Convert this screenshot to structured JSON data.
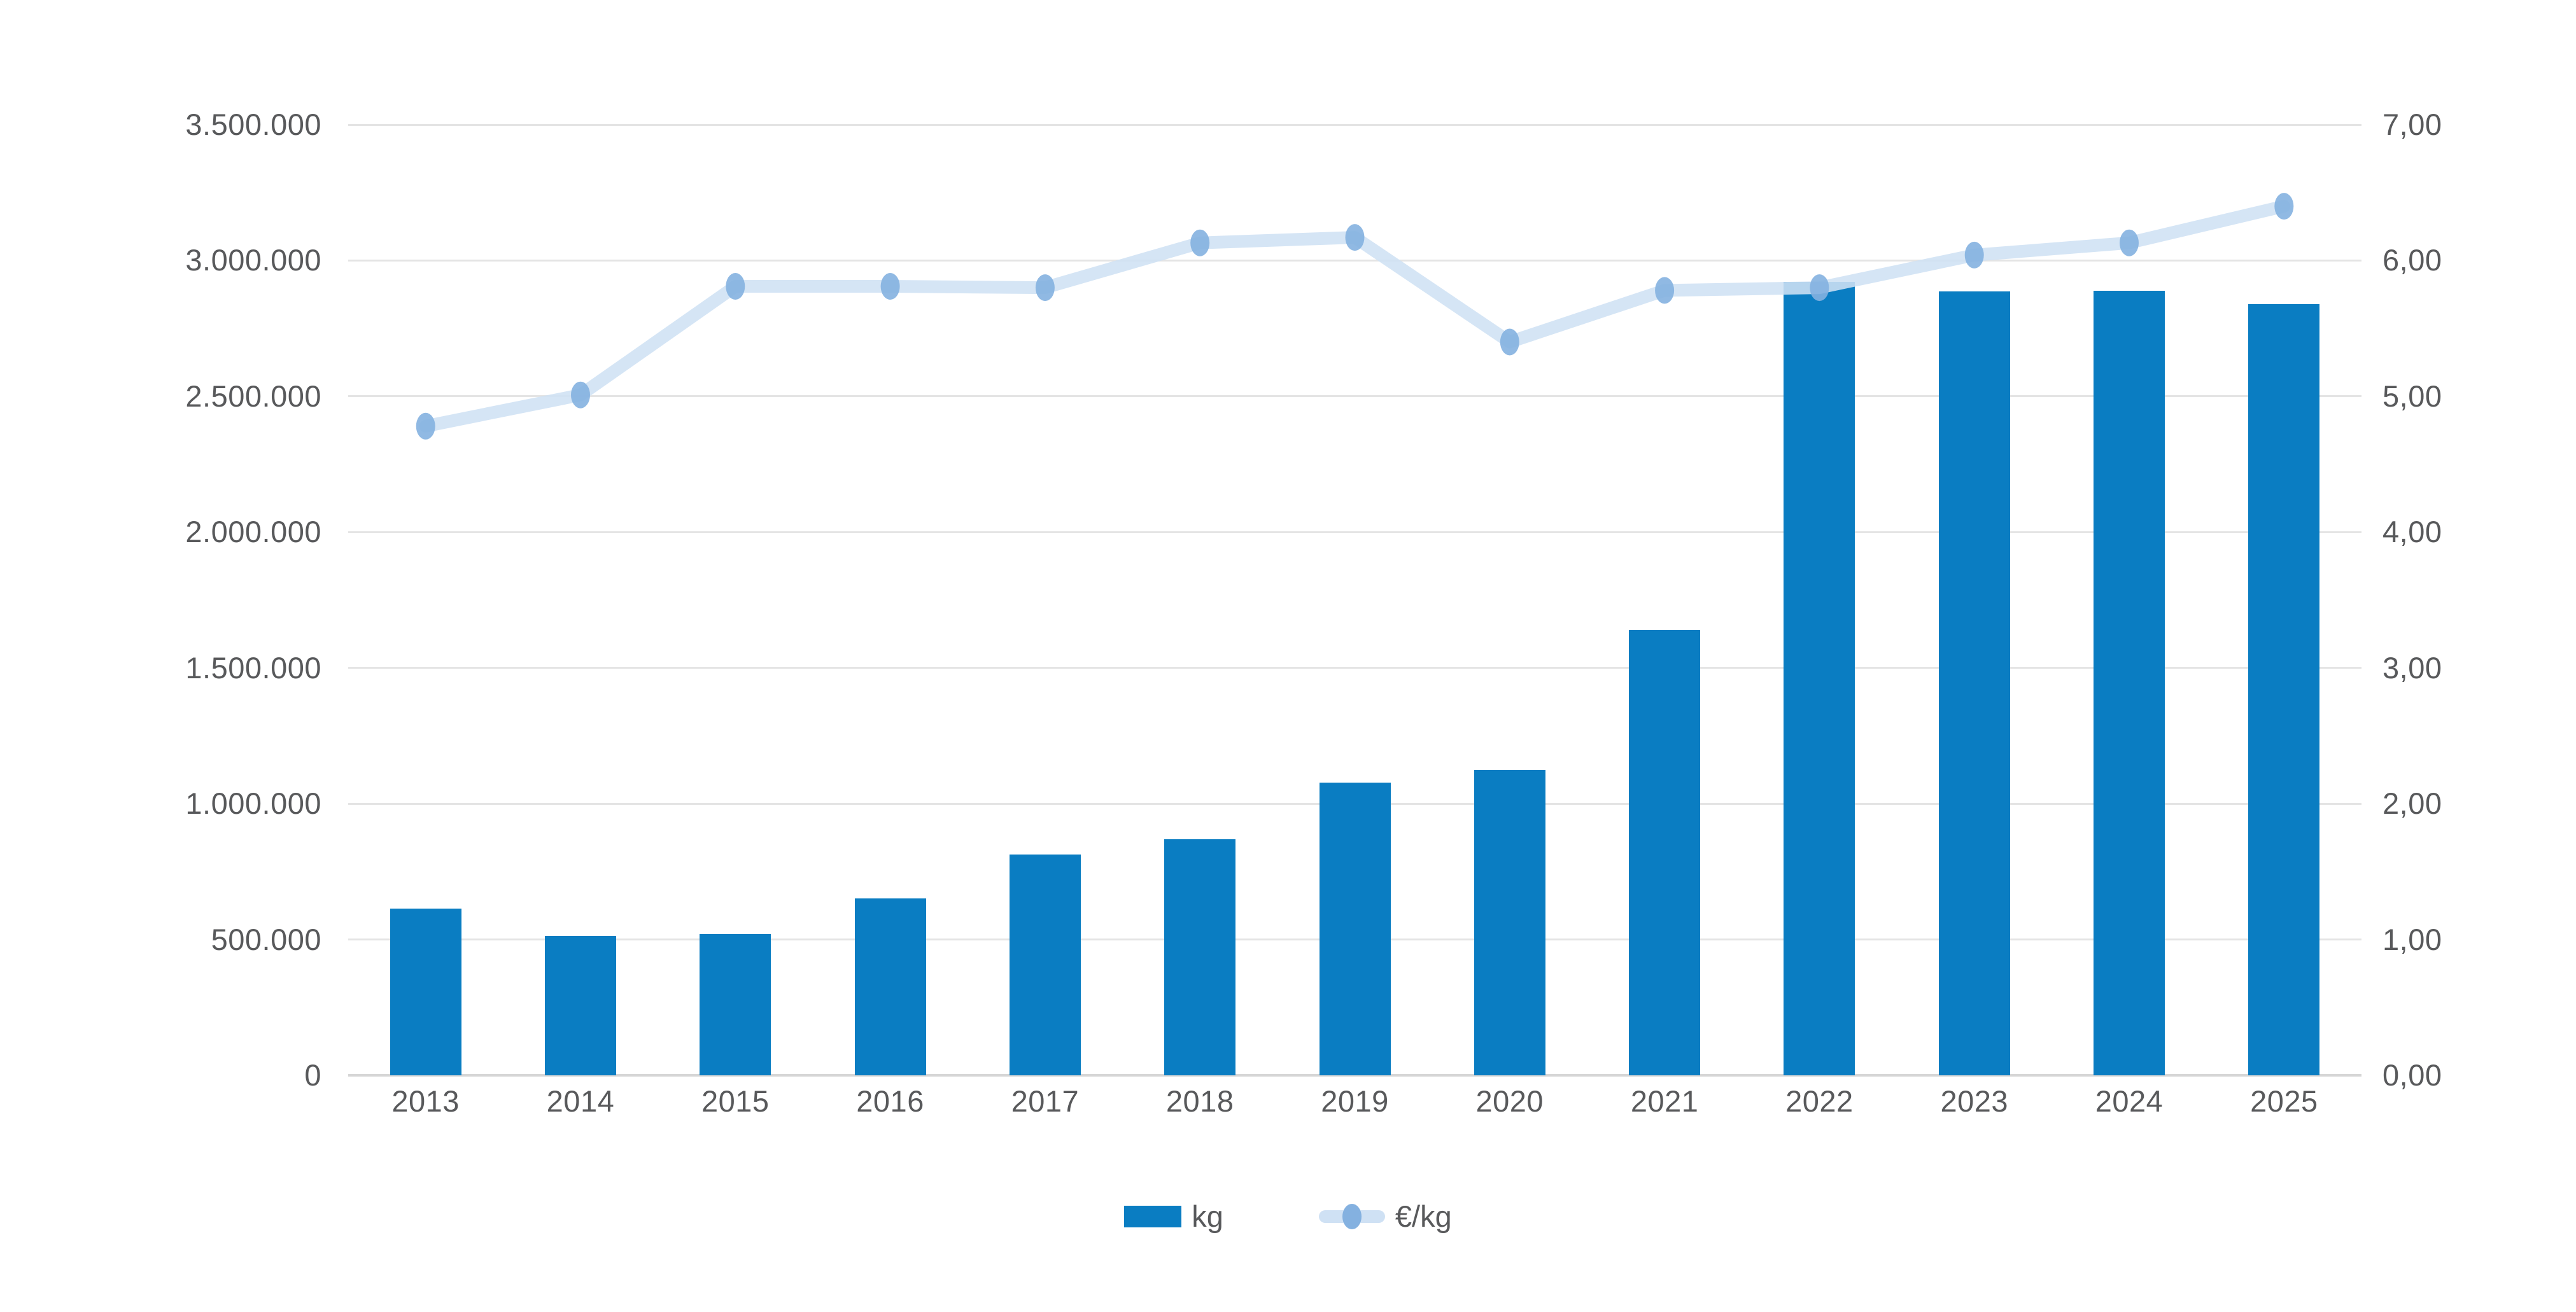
{
  "chart_data": {
    "type": "combo",
    "categories": [
      "2013",
      "2014",
      "2015",
      "2016",
      "2017",
      "2018",
      "2019",
      "2020",
      "2021",
      "2022",
      "2023",
      "2024",
      "2025"
    ],
    "series": [
      {
        "name": "kg",
        "type": "bar",
        "axis": "left",
        "values": [
          614000,
          513000,
          520000,
          651000,
          813000,
          869000,
          1078000,
          1125000,
          1640000,
          2922000,
          2887000,
          2889000,
          2840000
        ]
      },
      {
        "name": "€/kg",
        "type": "line",
        "axis": "right",
        "values": [
          4.78,
          5.01,
          5.81,
          5.81,
          5.8,
          6.13,
          6.17,
          5.4,
          5.78,
          5.8,
          6.04,
          6.13,
          6.4
        ]
      }
    ],
    "left_axis": {
      "min": 0,
      "max": 3500000,
      "step": 500000,
      "tick_labels_top_to_bottom": [
        "3.500.000",
        "3.000.000",
        "2.500.000",
        "2.000.000",
        "1.500.000",
        "1.000.000",
        "500.000",
        "0"
      ]
    },
    "right_axis": {
      "min": 0,
      "max": 7,
      "step": 1,
      "tick_labels_top_to_bottom": [
        "7,00",
        "6,00",
        "5,00",
        "4,00",
        "3,00",
        "2,00",
        "1,00",
        "0,00"
      ]
    },
    "title": "",
    "xlabel": "",
    "ylabel_left": "kg",
    "ylabel_right": "€/kg",
    "grid": "horizontal",
    "legend_position": "bottom",
    "colors": {
      "bar": "#0a7dc2",
      "line": "#cfe1f4",
      "dot": "#84b1e0",
      "grid": "#e4e4e4",
      "baseline": "#d6d6d6",
      "text": "#58595b",
      "background": "#ffffff"
    }
  }
}
